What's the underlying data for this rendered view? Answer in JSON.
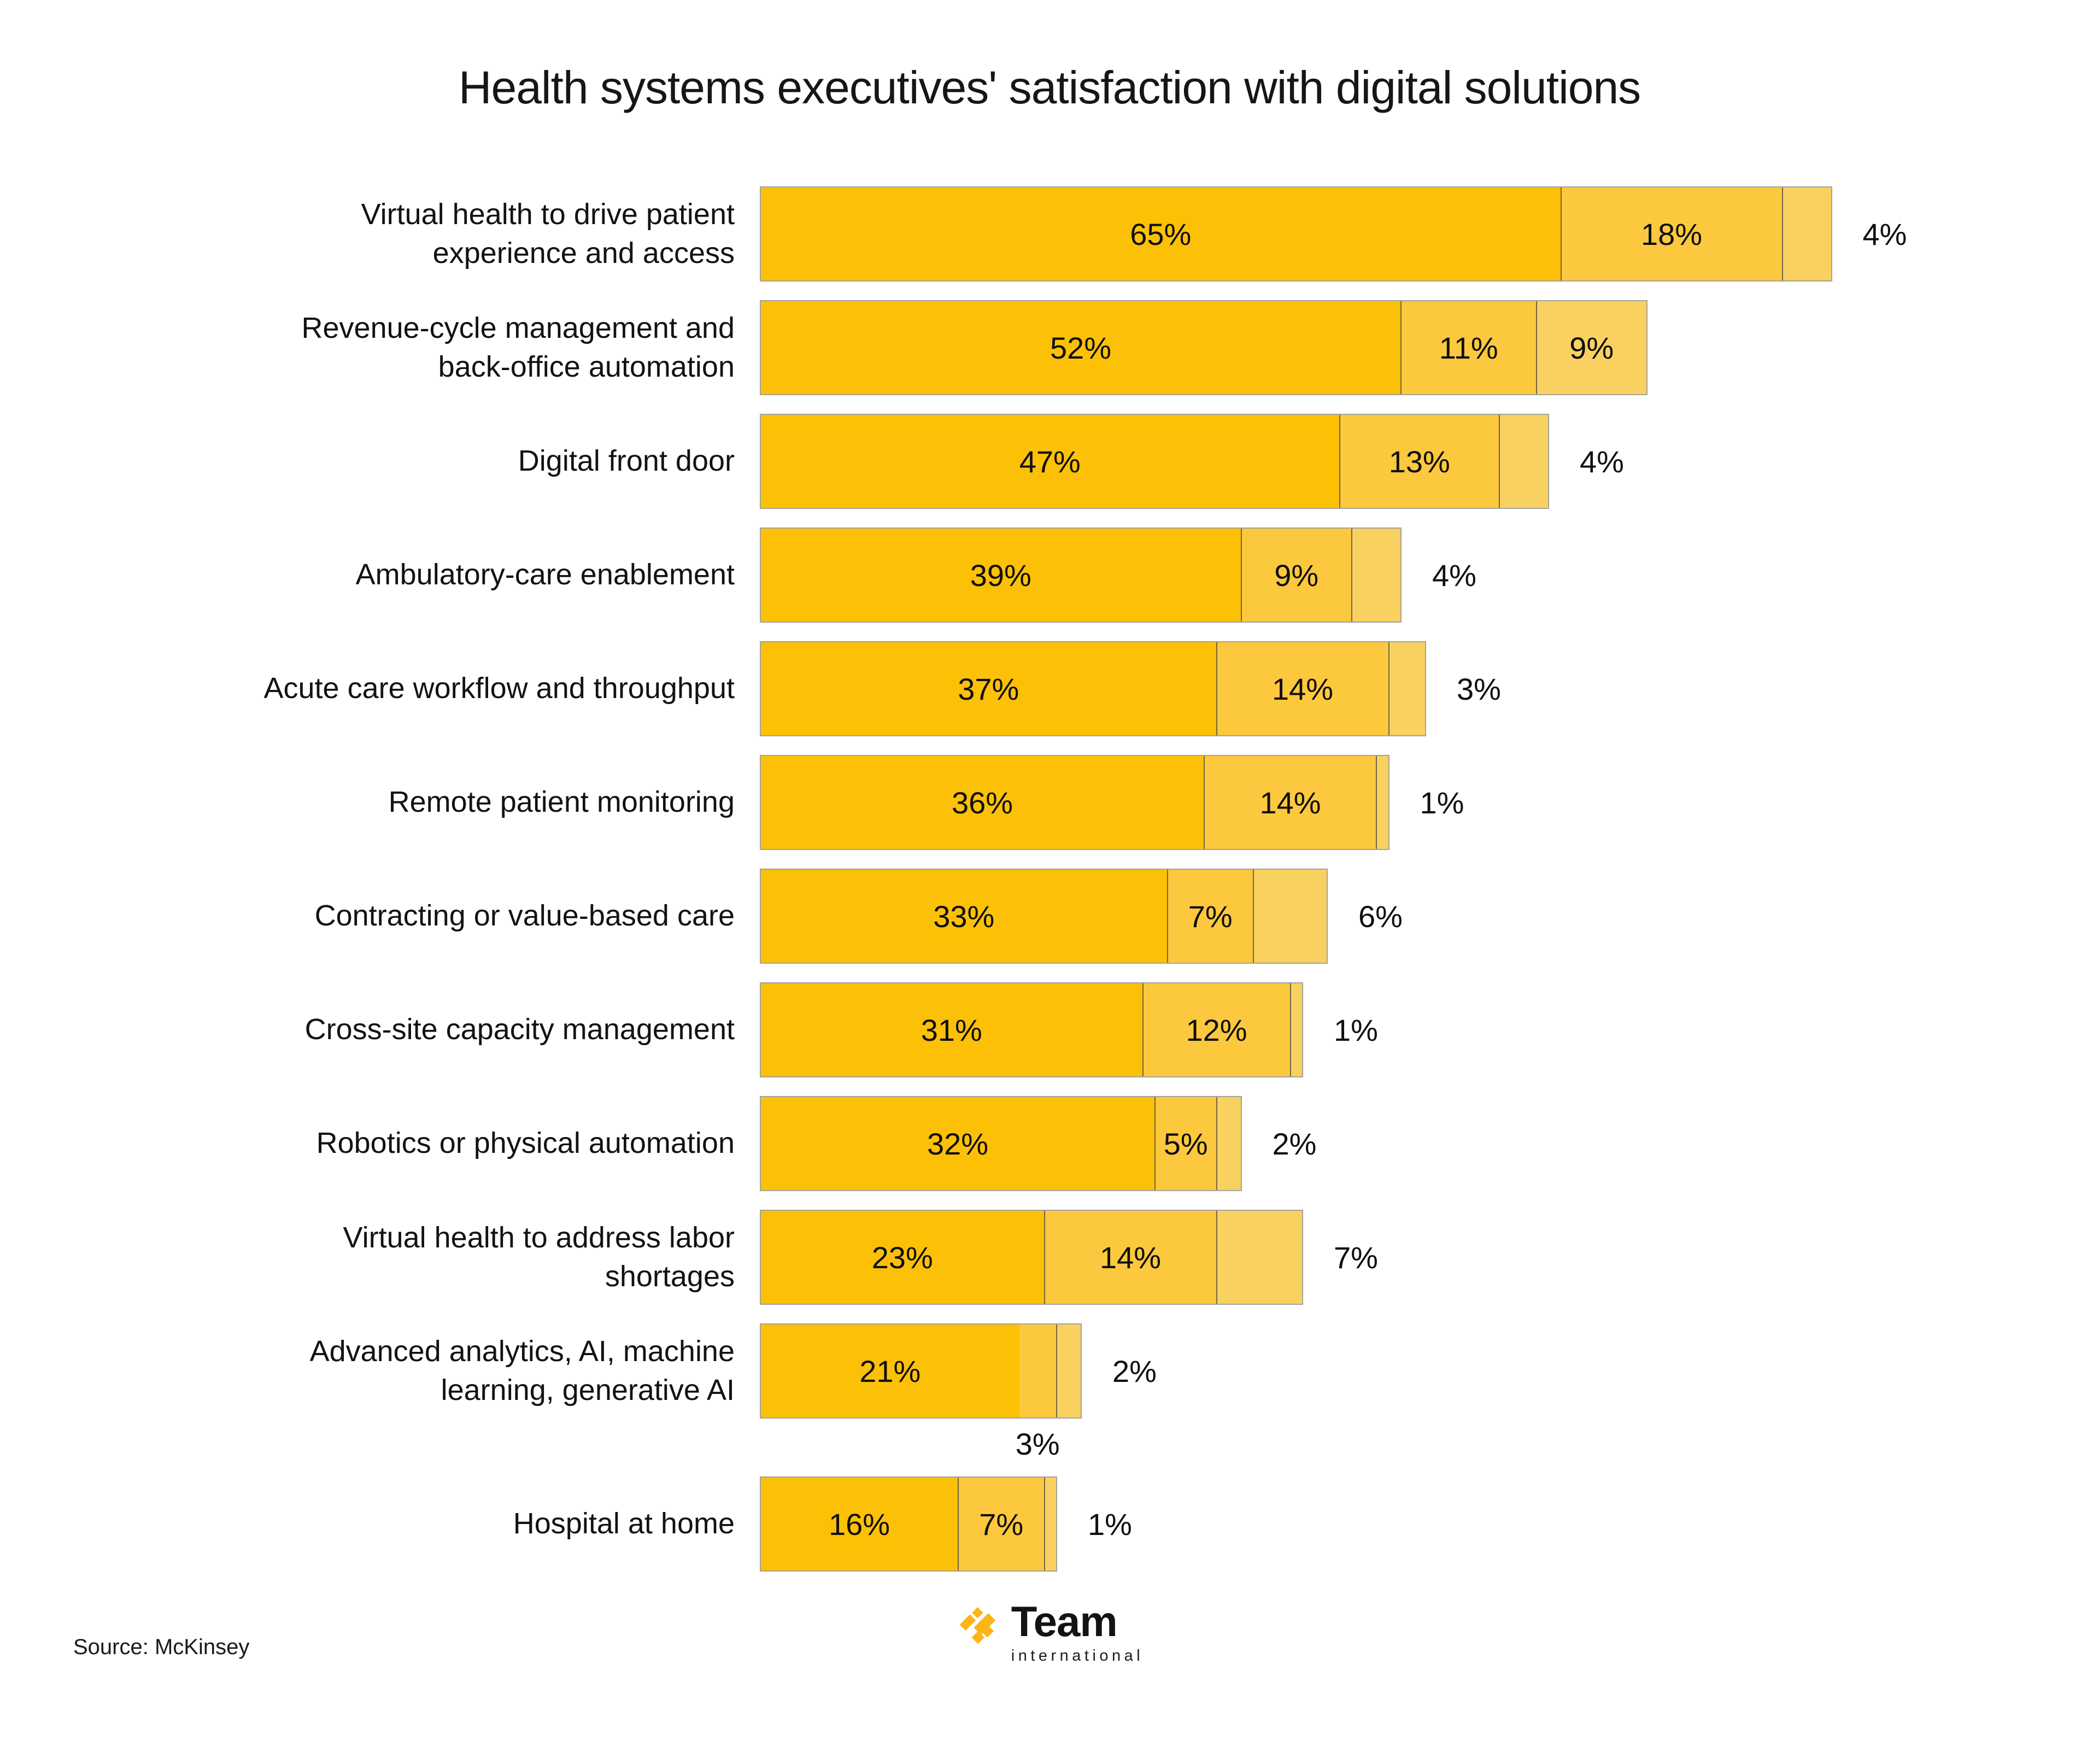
{
  "title": "Health systems executives' satisfaction with digital solutions",
  "source": "Source: McKinsey",
  "logo": {
    "name": "Team",
    "sub": "international",
    "color": "#FBB515"
  },
  "chart_data": {
    "type": "bar",
    "orientation": "horizontal",
    "stacked": true,
    "unit": "%",
    "title": "Health systems executives' satisfaction with digital solutions",
    "legend": "none",
    "grid": false,
    "categories": [
      "Virtual health to drive patient\nexperience and access",
      "Revenue-cycle management and\nback-office automation",
      "Digital front door",
      "Ambulatory-care enablement",
      "Acute care workflow and throughput",
      "Remote patient monitoring",
      "Contracting or value-based care",
      "Cross-site capacity management",
      "Robotics or physical automation",
      "Virtual health to address labor\nshortages",
      "Advanced analytics, AI, machine\nlearning, generative AI",
      "Hospital at home"
    ],
    "series": [
      {
        "name": "series-1",
        "color": "#FCC106",
        "values": [
          65,
          52,
          47,
          39,
          37,
          36,
          33,
          31,
          32,
          23,
          21,
          16
        ]
      },
      {
        "name": "series-2",
        "color": "#FCC83E",
        "values": [
          18,
          11,
          13,
          9,
          14,
          14,
          7,
          12,
          5,
          14,
          3,
          7
        ]
      },
      {
        "name": "series-3",
        "color": "#F8D161",
        "values": [
          4,
          9,
          4,
          4,
          3,
          1,
          6,
          1,
          2,
          7,
          2,
          1
        ]
      }
    ],
    "label_placements": [
      [
        "in",
        "in",
        "out"
      ],
      [
        "in",
        "in",
        "in"
      ],
      [
        "in",
        "in",
        "out"
      ],
      [
        "in",
        "in",
        "out"
      ],
      [
        "in",
        "in",
        "out"
      ],
      [
        "in",
        "in",
        "out"
      ],
      [
        "in",
        "in",
        "out"
      ],
      [
        "in",
        "in",
        "out"
      ],
      [
        "in",
        "in",
        "out"
      ],
      [
        "in",
        "in",
        "out"
      ],
      [
        "in",
        "below",
        "out"
      ],
      [
        "in",
        "in",
        "out"
      ]
    ],
    "extra_gap_after_row": 10
  }
}
